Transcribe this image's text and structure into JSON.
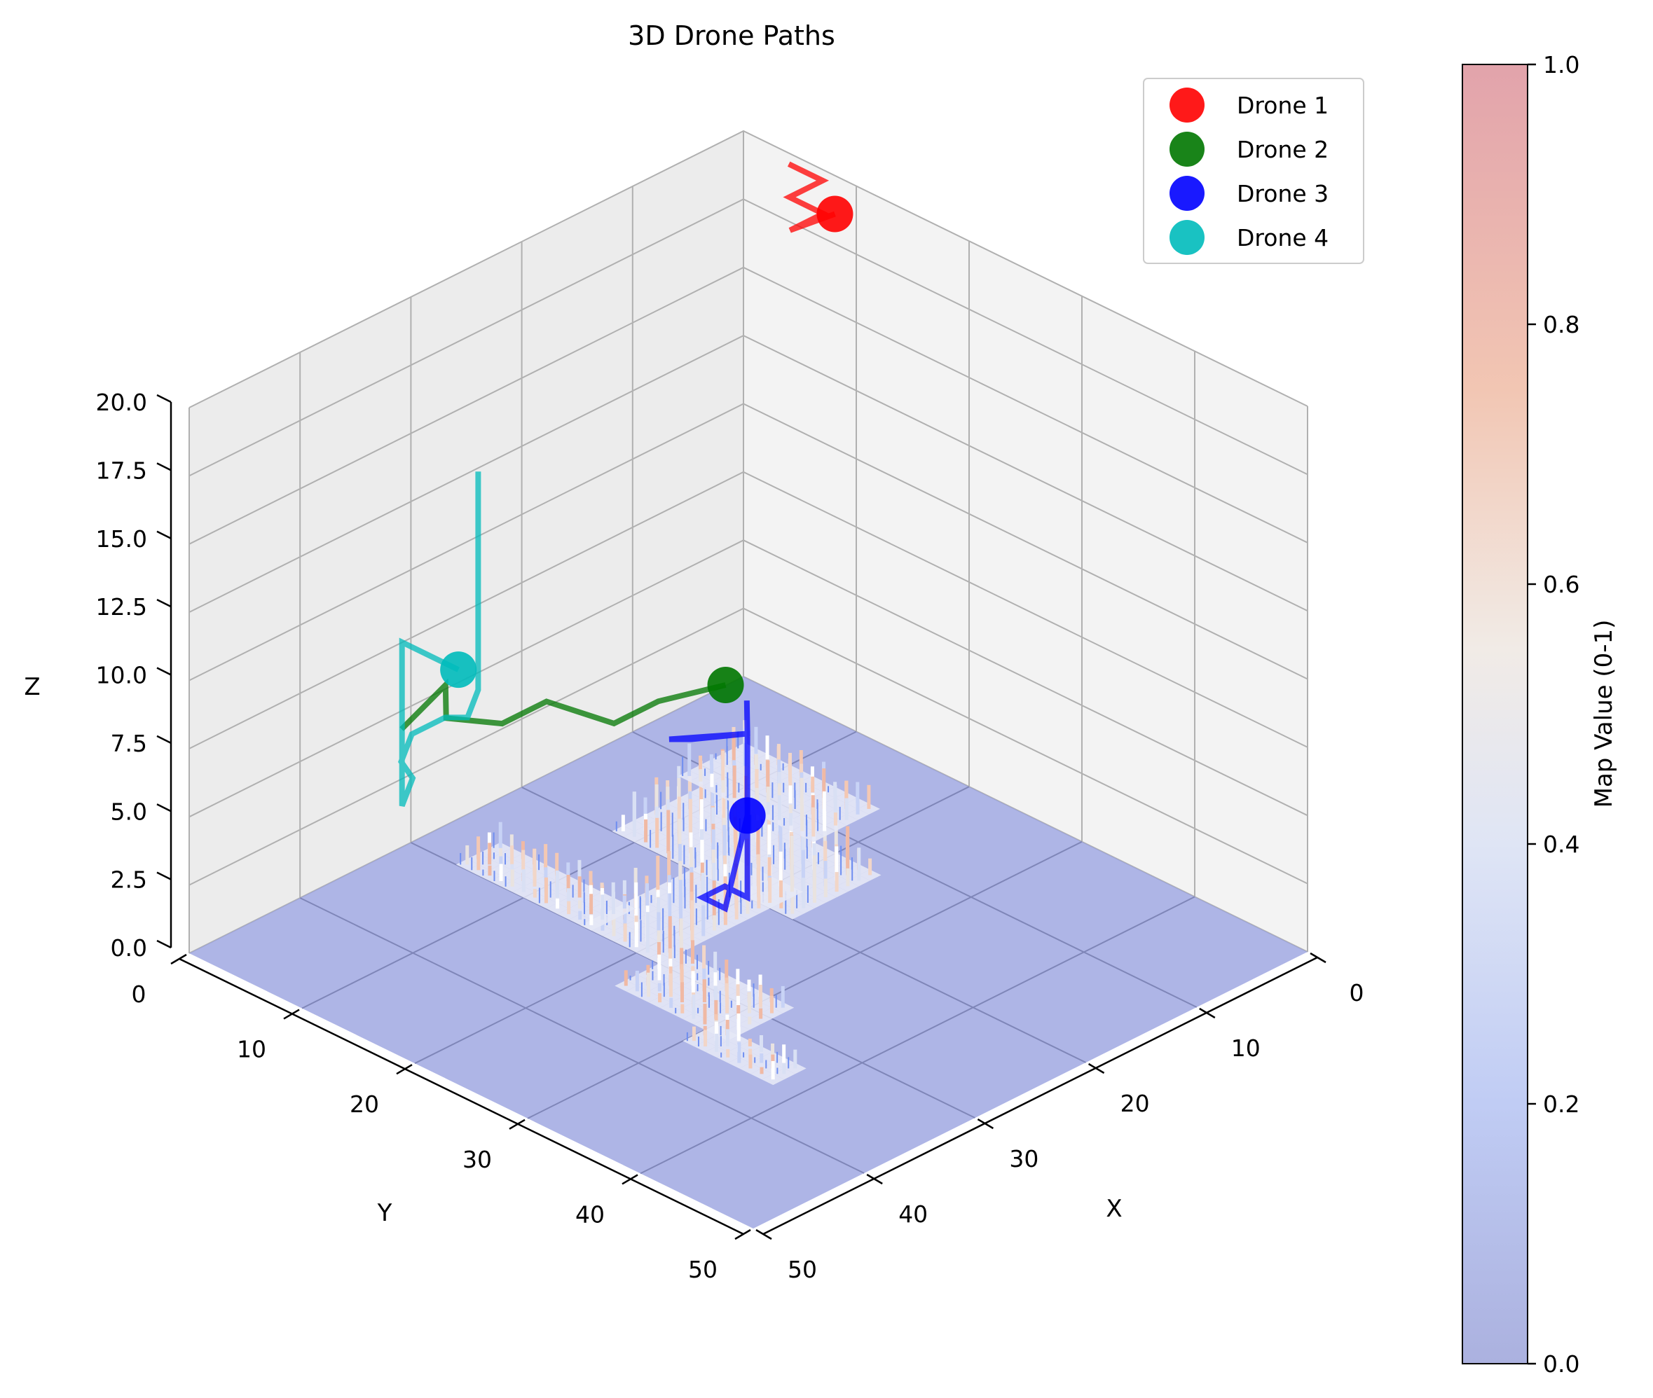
{
  "chart_data": [
    {
      "type": "line",
      "subtype": "3d-scatter-paths-over-surface",
      "title": "3D Drone Paths",
      "xlabel": "X",
      "ylabel": "Y",
      "zlabel": "Z",
      "xlim": [
        0,
        50
      ],
      "ylim": [
        0,
        50
      ],
      "zlim": [
        0,
        20
      ],
      "x_ticks": [
        "0",
        "10",
        "20",
        "30",
        "40",
        "50"
      ],
      "y_ticks": [
        "0",
        "10",
        "20",
        "30",
        "40",
        "50"
      ],
      "z_ticks": [
        "0.0",
        "2.5",
        "5.0",
        "7.5",
        "10.0",
        "12.5",
        "15.0",
        "17.5",
        "20.0"
      ],
      "grid": true,
      "legend_position": "top-right",
      "surface": {
        "colormap": "coolwarm",
        "description_value_range": [
          0,
          1
        ],
        "hotspots": [
          {
            "x": 19,
            "y": 18,
            "height": 2.2
          },
          {
            "x": 12,
            "y": 16,
            "height": 1.6
          },
          {
            "x": 25,
            "y": 14,
            "height": 1.4
          },
          {
            "x": 8,
            "y": 32,
            "height": 1.1
          },
          {
            "x": 27,
            "y": 35,
            "height": 0.9
          }
        ]
      },
      "series": [
        {
          "name": "Drone 1",
          "color": "#ff0000",
          "path": [
            [
              14,
              6,
              21
            ],
            [
              11,
              7,
              20
            ],
            [
              11,
              4,
              20
            ],
            [
              8,
              4,
              20
            ],
            [
              8,
              1,
              20
            ],
            [
              5,
              1,
              20
            ]
          ],
          "marker": [
            14,
            6,
            21
          ]
        },
        {
          "name": "Drone 2",
          "color": "#007700",
          "path": [
            [
              22,
              24,
              9
            ],
            [
              18,
              26,
              8
            ],
            [
              18,
              30,
              8
            ],
            [
              13,
              31,
              8
            ],
            [
              13,
              35,
              8
            ],
            [
              10,
              37,
              8
            ],
            [
              7,
              34,
              8
            ],
            [
              9,
              40,
              8
            ]
          ],
          "marker": [
            22,
            24,
            9
          ]
        },
        {
          "name": "Drone 3",
          "color": "#0000ff",
          "path": [
            [
              20,
              20,
              3
            ],
            [
              20,
              20,
              0
            ],
            [
              18,
              20,
              0
            ],
            [
              18,
              22,
              0
            ],
            [
              20,
              22,
              0
            ],
            [
              20,
              20,
              3
            ],
            [
              20,
              20,
              6
            ],
            [
              18,
              23,
              6
            ],
            [
              17,
              24,
              6
            ],
            [
              20,
              20,
              6
            ],
            [
              17,
              17,
              6
            ]
          ],
          "marker": [
            20,
            20,
            3
          ]
        },
        {
          "name": "Drone 4",
          "color": "#00bbbb",
          "path": [
            [
              16,
              42,
              12
            ],
            [
              11,
              42,
              12
            ],
            [
              11,
              42,
              6
            ],
            [
              9,
              39,
              6
            ],
            [
              7,
              38,
              6
            ],
            [
              5,
              35,
              6
            ],
            [
              5,
              32,
              6
            ],
            [
              6,
              31,
              6
            ],
            [
              4,
              28,
              6
            ],
            [
              4,
              28,
              14
            ]
          ],
          "marker": [
            16,
            42,
            12
          ]
        }
      ]
    },
    {
      "type": "colorbar",
      "label": "Map Value (0-1)",
      "range": [
        0,
        1
      ],
      "ticks": [
        "0.0",
        "0.2",
        "0.4",
        "0.6",
        "0.8",
        "1.0"
      ],
      "colormap": "coolwarm"
    }
  ]
}
